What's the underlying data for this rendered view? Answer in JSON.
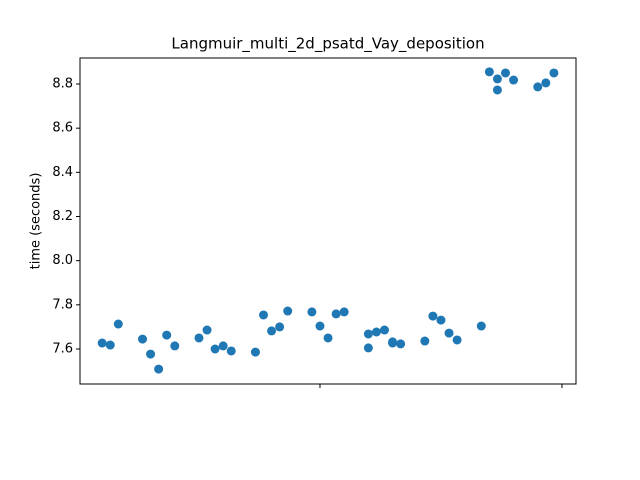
{
  "chart_data": {
    "type": "scatter",
    "title": "Langmuir_multi_2d_psatd_Vay_deposition",
    "y_label": "time (seconds)",
    "color": "#1f77b4",
    "x": [
      -27,
      -26,
      -25,
      -22,
      -21,
      -20,
      -19,
      -18,
      -15,
      -14,
      -13,
      -12,
      -11,
      -8,
      -7,
      -6,
      -5,
      -4,
      -1,
      0,
      1,
      2,
      3,
      6,
      6,
      7,
      8,
      9,
      9,
      10,
      13,
      14,
      15,
      16,
      17,
      20,
      21,
      22,
      22,
      23,
      24,
      27,
      28,
      29
    ],
    "values": [
      7.627,
      7.618,
      7.713,
      7.645,
      7.577,
      7.509,
      7.663,
      7.614,
      7.65,
      7.686,
      7.6,
      7.614,
      7.591,
      7.586,
      7.754,
      7.682,
      7.7,
      7.772,
      7.768,
      7.704,
      7.65,
      7.759,
      7.768,
      7.668,
      7.605,
      7.677,
      7.686,
      7.632,
      7.627,
      7.623,
      7.636,
      7.749,
      7.731,
      7.672,
      7.641,
      7.704,
      8.855,
      8.823,
      8.773,
      8.85,
      8.818,
      8.787,
      8.805,
      8.85
    ],
    "xlim": [
      -29.75,
      31.74
    ],
    "xticks": [
      0,
      30
    ],
    "ylim": [
      7.4415,
      8.9178
    ],
    "yticks": [
      7.6,
      7.8,
      {
        "value": 8.0,
        "label": "8.0"
      },
      8.2,
      8.4,
      8.6,
      8.8
    ]
  }
}
